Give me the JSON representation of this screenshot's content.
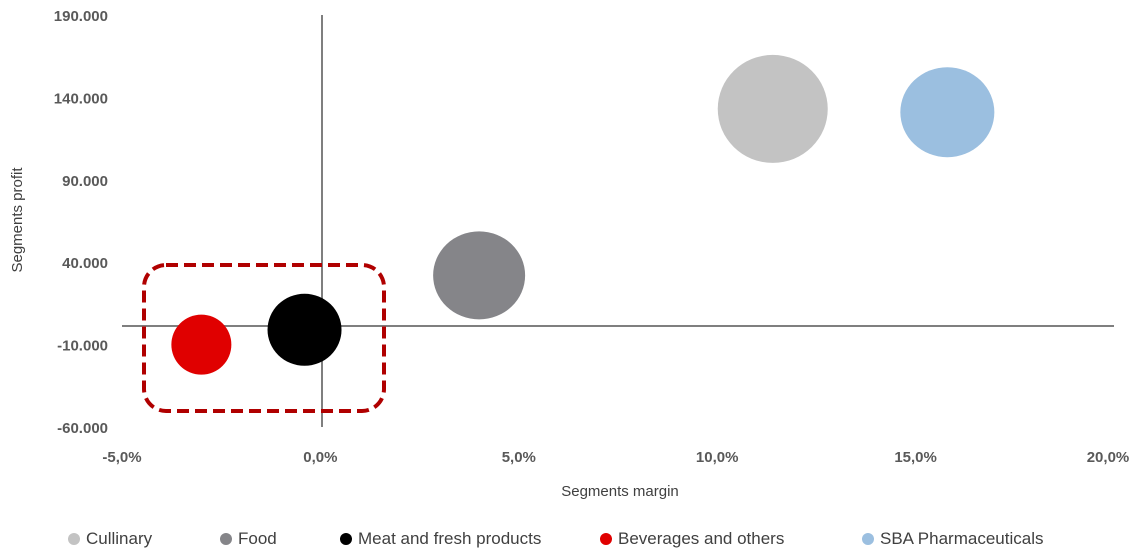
{
  "chart_data": {
    "type": "bubble",
    "title": "",
    "xlabel": "Segments margin",
    "ylabel": "Segments profit",
    "xlim": [
      -0.05,
      0.2
    ],
    "ylim": [
      -60000,
      190000
    ],
    "x_ticks": [
      "-5,0%",
      "0,0%",
      "5,0%",
      "10,0%",
      "15,0%",
      "20,0%"
    ],
    "y_ticks": [
      "190.000",
      "140.000",
      "90.000",
      "40.000",
      "-10.000",
      "-60.000"
    ],
    "grid": false,
    "legend_position": "bottom",
    "series": [
      {
        "name": "Cullinary",
        "x": 0.114,
        "y": 133000,
        "color": "#c3c3c3"
      },
      {
        "name": "Food",
        "x": 0.04,
        "y": 32000,
        "color": "#858589"
      },
      {
        "name": "Meat and fresh products",
        "x": -0.004,
        "y": -1000,
        "color": "#000000"
      },
      {
        "name": "Beverages and others",
        "x": -0.03,
        "y": -10000,
        "color": "#e00000"
      },
      {
        "name": "SBA Pharmaceuticals",
        "x": 0.158,
        "y": 131000,
        "color": "#9bbfe0"
      }
    ],
    "highlight_color": "#b00000"
  }
}
